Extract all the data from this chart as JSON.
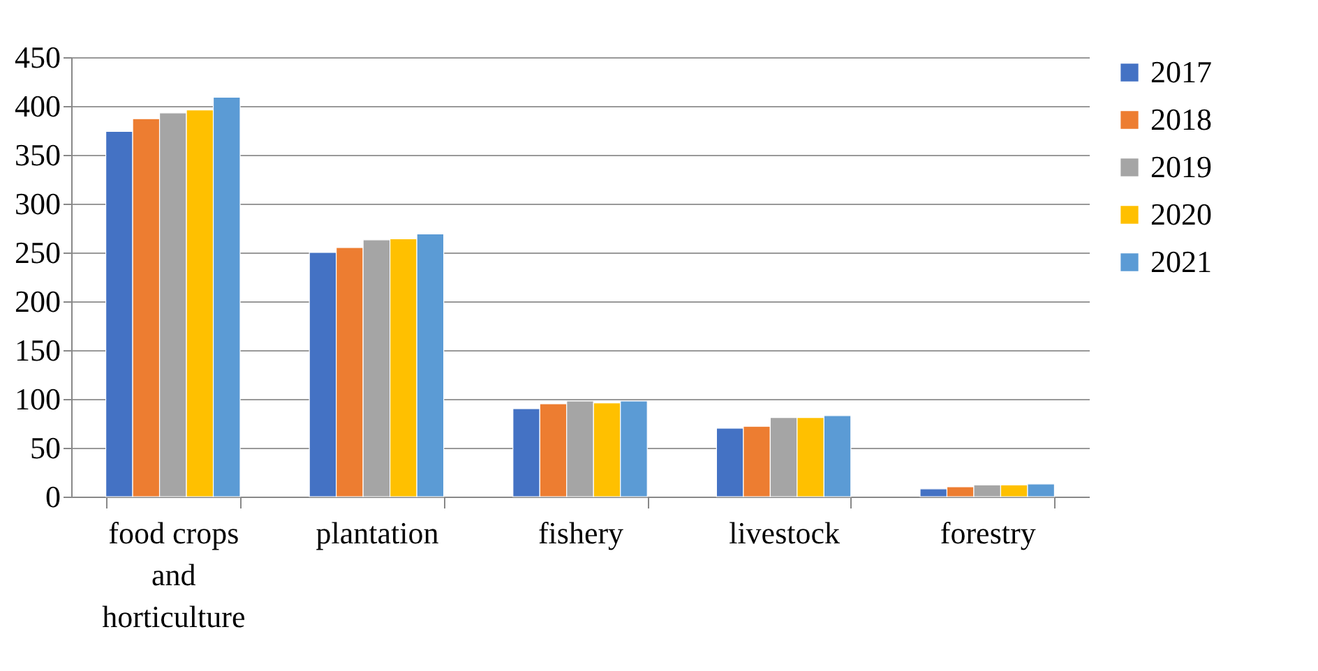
{
  "chart_data": {
    "type": "bar",
    "categories": [
      "food crops and horticulture",
      "plantation",
      "fishery",
      "livestock",
      "forestry"
    ],
    "series": [
      {
        "name": "2017",
        "color": "#4472c4",
        "values": [
          374,
          250,
          90,
          70,
          8
        ]
      },
      {
        "name": "2018",
        "color": "#ed7d31",
        "values": [
          387,
          255,
          95,
          72,
          10
        ]
      },
      {
        "name": "2019",
        "color": "#a5a5a5",
        "values": [
          393,
          263,
          98,
          81,
          12
        ]
      },
      {
        "name": "2020",
        "color": "#ffc000",
        "values": [
          396,
          264,
          96,
          81,
          12
        ]
      },
      {
        "name": "2021",
        "color": "#5b9bd5",
        "values": [
          409,
          269,
          98,
          83,
          13
        ]
      }
    ],
    "ylim": [
      0,
      450
    ],
    "yticks": [
      0,
      50,
      100,
      150,
      200,
      250,
      300,
      350,
      400,
      450
    ],
    "grid": "y",
    "legend": "right"
  }
}
